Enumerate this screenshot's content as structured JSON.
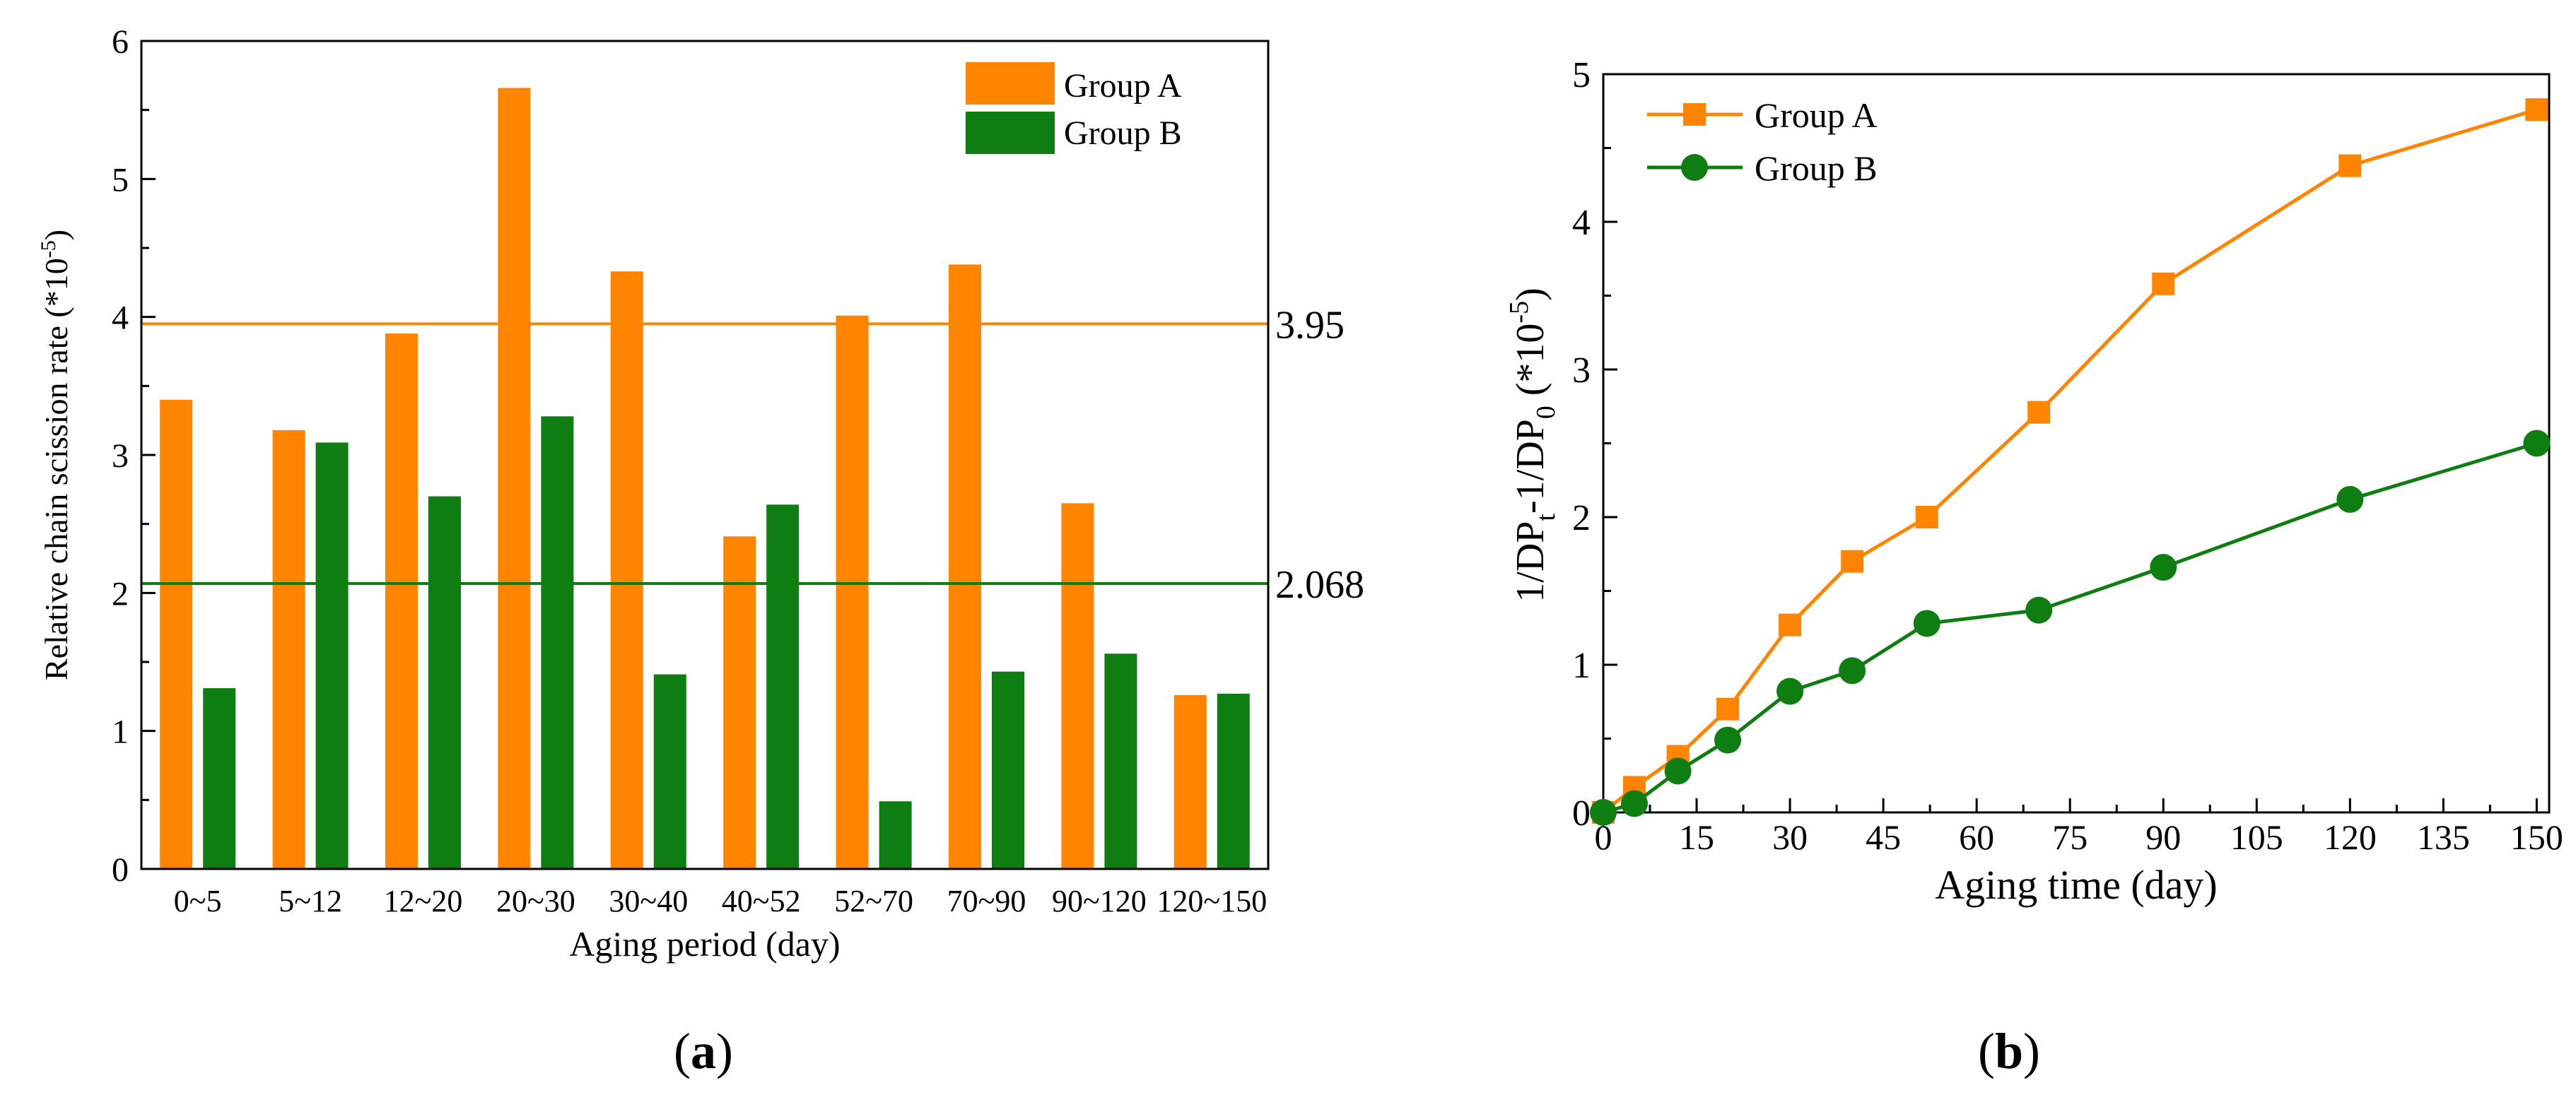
{
  "colors": {
    "group_a": "#ff8400",
    "group_b": "#0e7d12",
    "axis": "#000000"
  },
  "chart_data": [
    {
      "id": "a",
      "type": "bar",
      "panel_label": "a",
      "categories": [
        "0~5",
        "5~12",
        "12~20",
        "20~30",
        "30~40",
        "40~52",
        "52~70",
        "70~90",
        "90~120",
        "120~150"
      ],
      "series": [
        {
          "name": "Group A",
          "values": [
            3.4,
            3.18,
            3.88,
            5.66,
            4.33,
            2.41,
            4.01,
            4.38,
            2.65,
            1.26
          ]
        },
        {
          "name": "Group B",
          "values": [
            1.31,
            3.09,
            2.7,
            3.28,
            1.41,
            2.64,
            0.49,
            1.43,
            1.56,
            1.27
          ]
        }
      ],
      "reference_lines": [
        {
          "series": "Group A",
          "value": 3.95,
          "label": "3.95"
        },
        {
          "series": "Group B",
          "value": 2.068,
          "label": "2.068"
        }
      ],
      "xlabel": "Aging period (day)",
      "ylabel": "Relative chain scission rate (*10",
      "ylabel_exp": "-5",
      "ylabel_close": ")",
      "ylim": [
        0,
        6
      ],
      "yticks": [
        "0",
        "1",
        "2",
        "3",
        "4",
        "5",
        "6"
      ],
      "legend": [
        "Group A",
        "Group B"
      ],
      "legend_position": "top-right"
    },
    {
      "id": "b",
      "type": "line",
      "panel_label": "b",
      "series": [
        {
          "name": "Group A",
          "marker": "square",
          "x": [
            0,
            5,
            12,
            20,
            30,
            40,
            52,
            70,
            90,
            120,
            150
          ],
          "y": [
            0,
            0.17,
            0.38,
            0.7,
            1.27,
            1.7,
            2.0,
            2.71,
            3.58,
            4.38,
            4.76
          ]
        },
        {
          "name": "Group B",
          "marker": "circle",
          "x": [
            0,
            5,
            12,
            20,
            30,
            40,
            52,
            70,
            90,
            120,
            150
          ],
          "y": [
            0,
            0.06,
            0.28,
            0.49,
            0.82,
            0.96,
            1.28,
            1.37,
            1.66,
            2.12,
            2.5
          ]
        }
      ],
      "xlabel": "Aging time (day)",
      "ylabel_parts": [
        "1/DP",
        "t",
        "-1/DP",
        "0",
        " (*10",
        "-5",
        ")"
      ],
      "xlim": [
        0,
        152
      ],
      "ylim": [
        0,
        5
      ],
      "xticks": [
        "0",
        "15",
        "30",
        "45",
        "60",
        "75",
        "90",
        "105",
        "120",
        "135",
        "150"
      ],
      "yticks": [
        "0",
        "1",
        "2",
        "3",
        "4",
        "5"
      ],
      "legend": [
        "Group A",
        "Group B"
      ],
      "legend_position": "top-left"
    }
  ]
}
